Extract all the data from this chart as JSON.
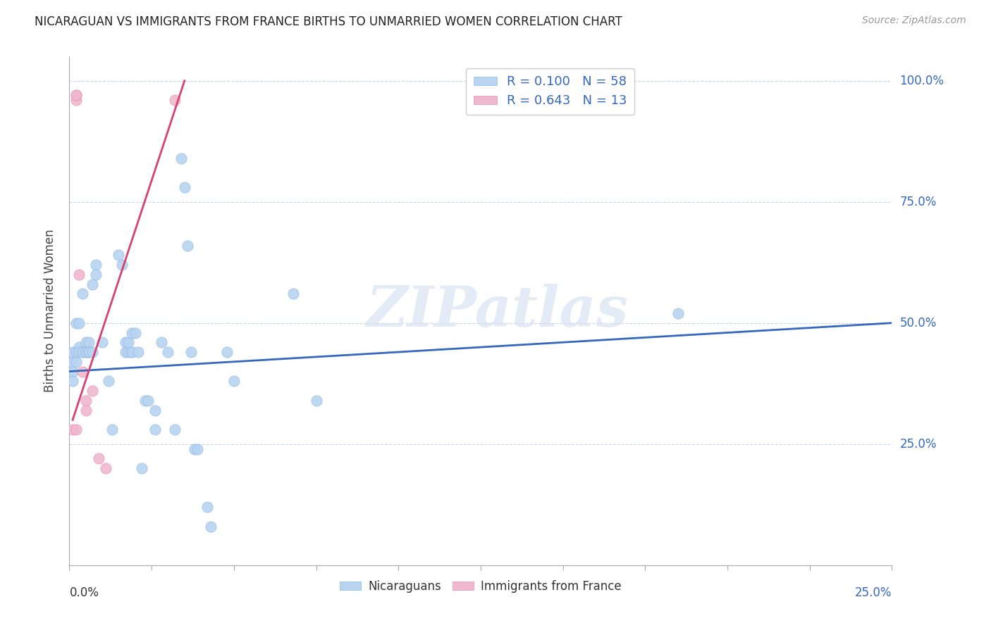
{
  "title": "NICARAGUAN VS IMMIGRANTS FROM FRANCE BIRTHS TO UNMARRIED WOMEN CORRELATION CHART",
  "source": "Source: ZipAtlas.com",
  "ylabel": "Births to Unmarried Women",
  "yticks": [
    0.0,
    0.25,
    0.5,
    0.75,
    1.0
  ],
  "ytick_labels": [
    "",
    "25.0%",
    "50.0%",
    "75.0%",
    "100.0%"
  ],
  "xmin": 0.0,
  "xmax": 0.25,
  "ymin": 0.0,
  "ymax": 1.05,
  "watermark": "ZIPatlas",
  "legend_r1": "0.100",
  "legend_n1": "58",
  "legend_r2": "0.643",
  "legend_n2": "13",
  "blue_color": "#b8d4f0",
  "pink_color": "#f0b8cc",
  "blue_line_color": "#3468c0",
  "pink_line_color": "#d84070",
  "blue_scatter": [
    [
      0.001,
      0.42
    ],
    [
      0.001,
      0.44
    ],
    [
      0.001,
      0.4
    ],
    [
      0.001,
      0.38
    ],
    [
      0.002,
      0.5
    ],
    [
      0.002,
      0.44
    ],
    [
      0.002,
      0.42
    ],
    [
      0.003,
      0.5
    ],
    [
      0.003,
      0.45
    ],
    [
      0.003,
      0.44
    ],
    [
      0.004,
      0.56
    ],
    [
      0.004,
      0.44
    ],
    [
      0.004,
      0.44
    ],
    [
      0.005,
      0.46
    ],
    [
      0.005,
      0.44
    ],
    [
      0.005,
      0.44
    ],
    [
      0.006,
      0.46
    ],
    [
      0.006,
      0.44
    ],
    [
      0.006,
      0.44
    ],
    [
      0.007,
      0.58
    ],
    [
      0.007,
      0.44
    ],
    [
      0.008,
      0.62
    ],
    [
      0.008,
      0.6
    ],
    [
      0.01,
      0.46
    ],
    [
      0.012,
      0.38
    ],
    [
      0.013,
      0.28
    ],
    [
      0.015,
      0.64
    ],
    [
      0.016,
      0.62
    ],
    [
      0.017,
      0.46
    ],
    [
      0.017,
      0.44
    ],
    [
      0.018,
      0.44
    ],
    [
      0.018,
      0.46
    ],
    [
      0.019,
      0.48
    ],
    [
      0.019,
      0.44
    ],
    [
      0.019,
      0.44
    ],
    [
      0.02,
      0.48
    ],
    [
      0.021,
      0.44
    ],
    [
      0.022,
      0.2
    ],
    [
      0.023,
      0.34
    ],
    [
      0.024,
      0.34
    ],
    [
      0.026,
      0.32
    ],
    [
      0.026,
      0.28
    ],
    [
      0.028,
      0.46
    ],
    [
      0.03,
      0.44
    ],
    [
      0.032,
      0.28
    ],
    [
      0.034,
      0.84
    ],
    [
      0.035,
      0.78
    ],
    [
      0.036,
      0.66
    ],
    [
      0.037,
      0.44
    ],
    [
      0.038,
      0.24
    ],
    [
      0.039,
      0.24
    ],
    [
      0.042,
      0.12
    ],
    [
      0.043,
      0.08
    ],
    [
      0.048,
      0.44
    ],
    [
      0.05,
      0.38
    ],
    [
      0.068,
      0.56
    ],
    [
      0.075,
      0.34
    ],
    [
      0.185,
      0.52
    ]
  ],
  "pink_scatter": [
    [
      0.001,
      0.28
    ],
    [
      0.002,
      0.28
    ],
    [
      0.002,
      0.96
    ],
    [
      0.002,
      0.97
    ],
    [
      0.002,
      0.97
    ],
    [
      0.003,
      0.6
    ],
    [
      0.004,
      0.4
    ],
    [
      0.005,
      0.34
    ],
    [
      0.005,
      0.32
    ],
    [
      0.007,
      0.36
    ],
    [
      0.009,
      0.22
    ],
    [
      0.011,
      0.2
    ],
    [
      0.032,
      0.96
    ]
  ],
  "blue_line_x": [
    0.0,
    0.25
  ],
  "blue_line_y": [
    0.4,
    0.5
  ],
  "pink_line_x": [
    0.001,
    0.035
  ],
  "pink_line_y": [
    0.3,
    1.0
  ]
}
